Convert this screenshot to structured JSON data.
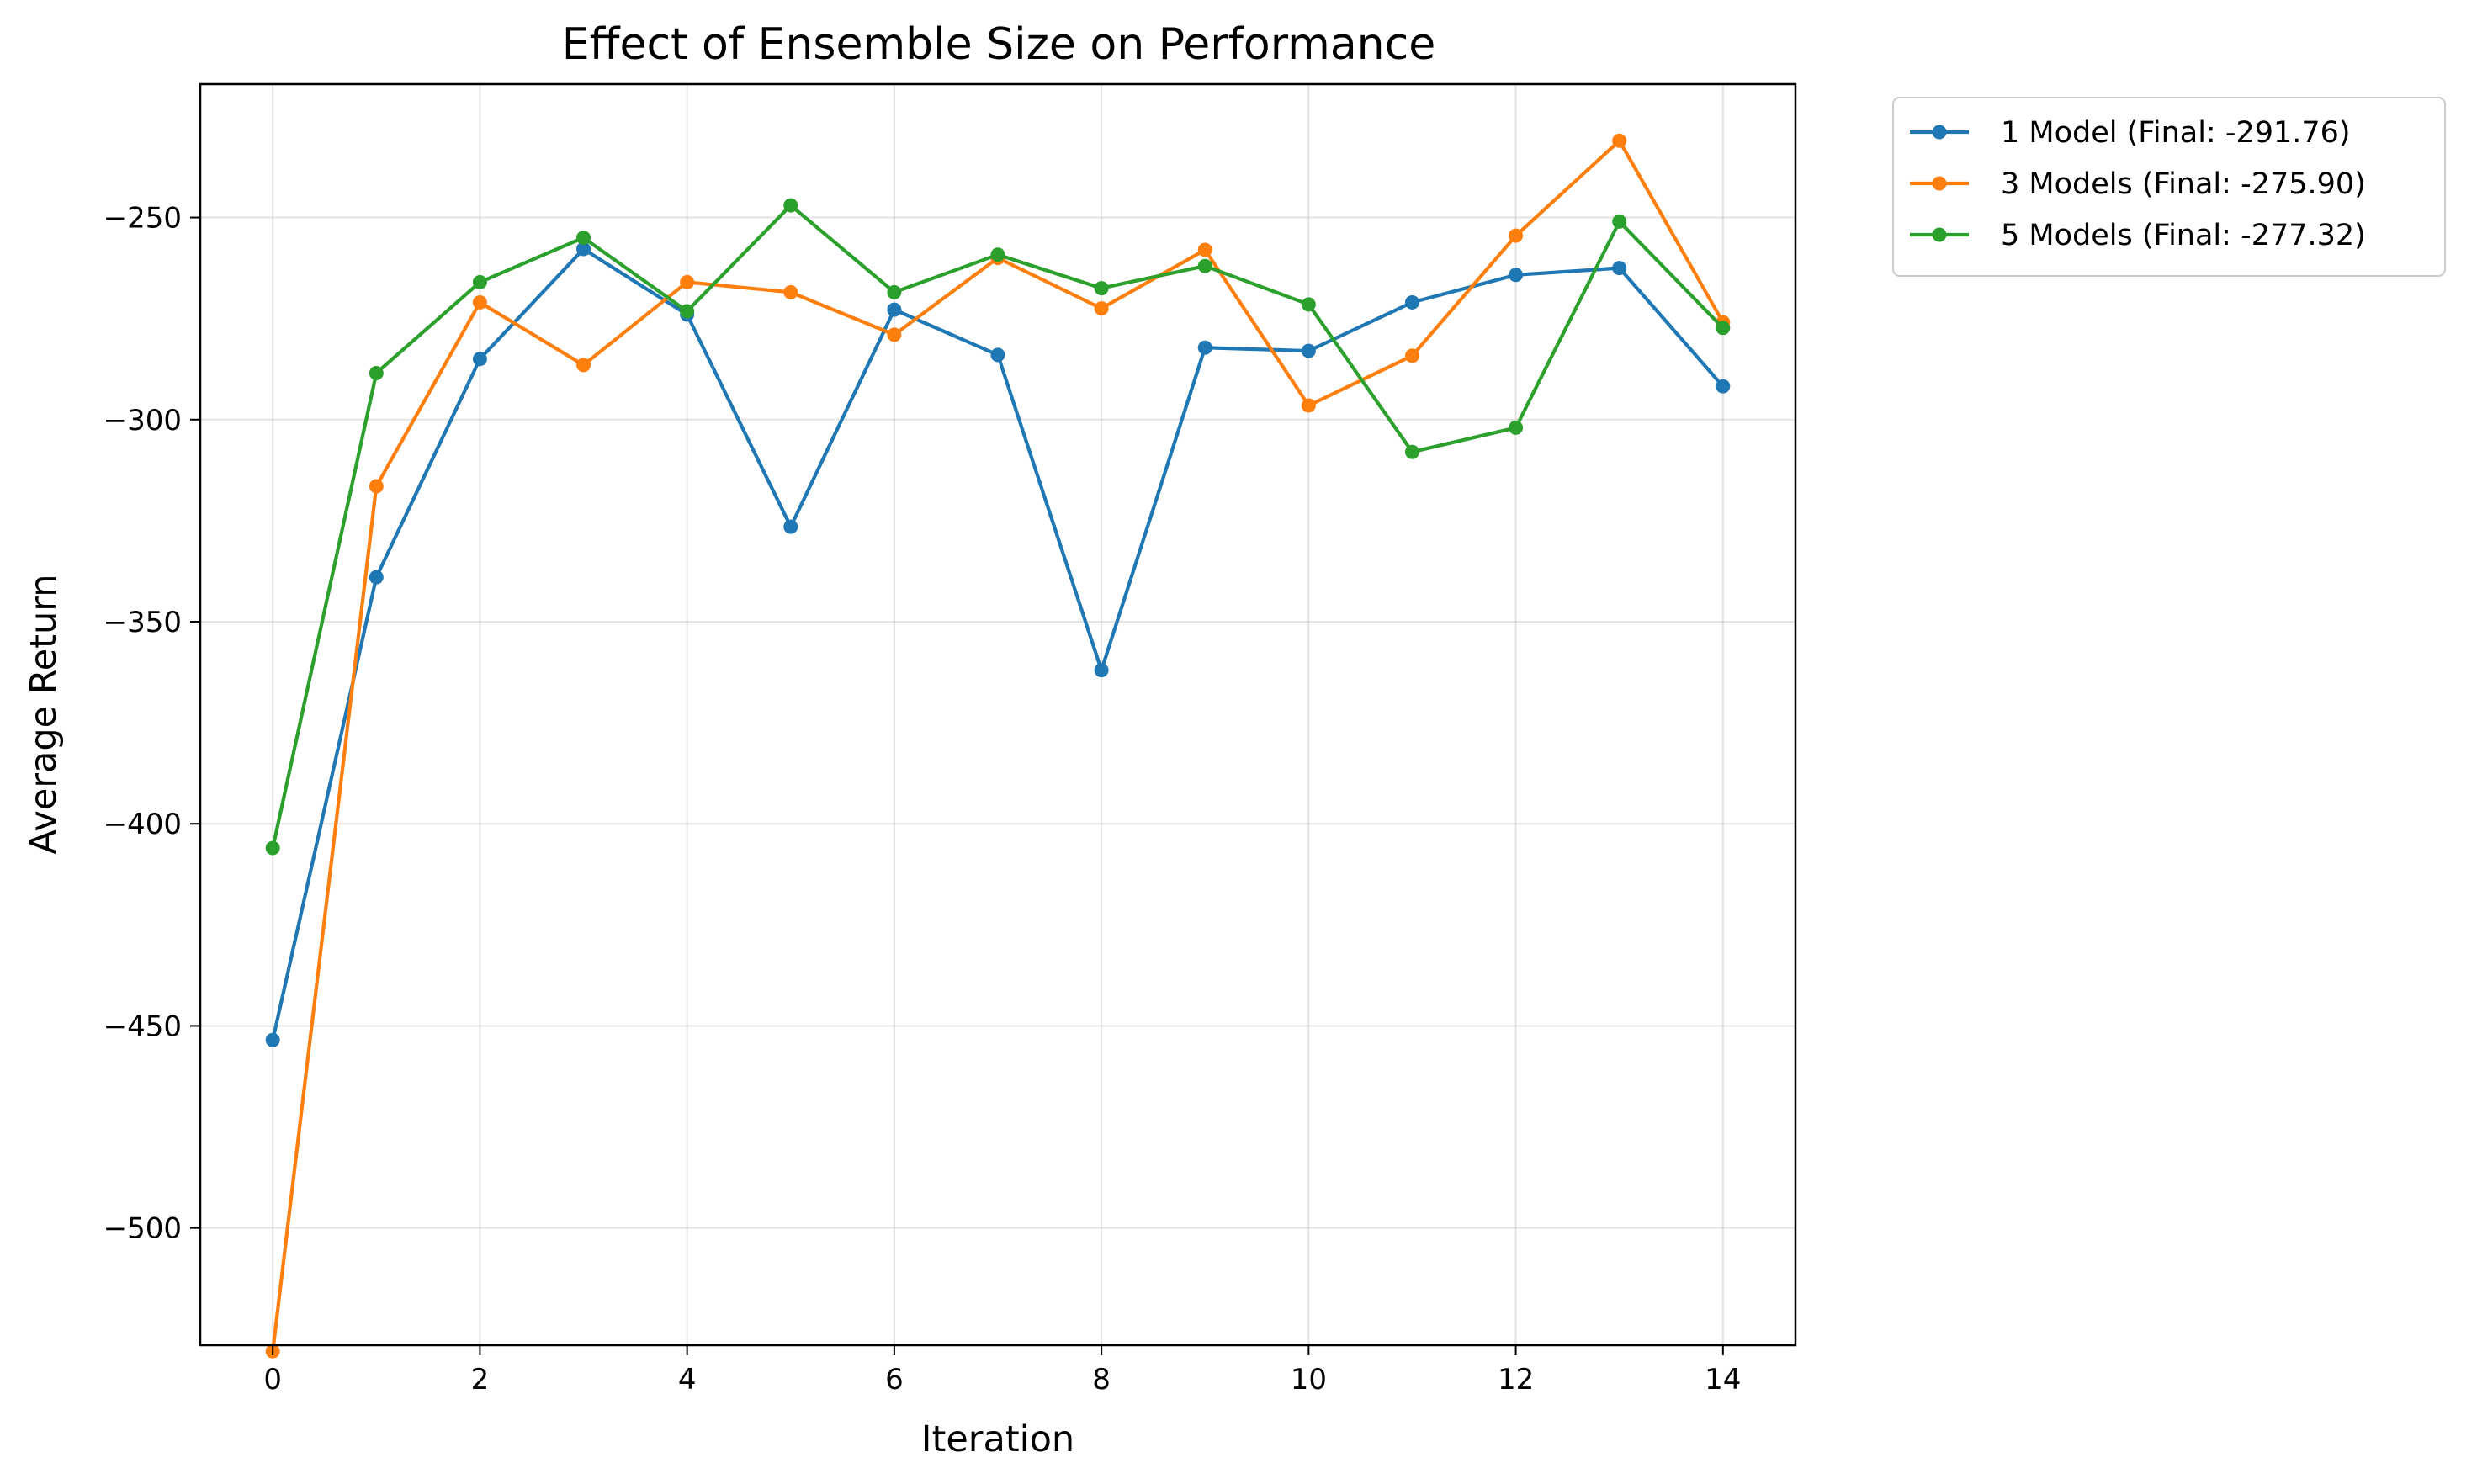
{
  "chart_data": {
    "type": "line",
    "title": "Effect of Ensemble Size on Performance",
    "xlabel": "Iteration",
    "ylabel": "Average Return",
    "x": [
      0,
      1,
      2,
      3,
      4,
      5,
      6,
      7,
      8,
      9,
      10,
      11,
      12,
      13,
      14
    ],
    "xlim": [
      -0.7,
      14.7
    ],
    "ylim": [
      -529,
      -217
    ],
    "xticks": [
      0,
      2,
      4,
      6,
      8,
      10,
      12,
      14
    ],
    "xtick_labels": [
      "0",
      "2",
      "4",
      "6",
      "8",
      "10",
      "12",
      "14"
    ],
    "yticks": [
      -250,
      -300,
      -350,
      -400,
      -450,
      -500
    ],
    "ytick_labels": [
      "−250",
      "−300",
      "−350",
      "−400",
      "−450",
      "−500"
    ],
    "grid": true,
    "legend_position": "outside-top-right",
    "series": [
      {
        "name": "1 Model (Final: -291.76)",
        "color": "#1f77b4",
        "values": [
          -453.5,
          -339.0,
          -285.0,
          -257.8,
          -274.0,
          -326.5,
          -272.8,
          -284.0,
          -362.0,
          -282.2,
          -283.0,
          -271.0,
          -264.2,
          -262.5,
          -291.76
        ]
      },
      {
        "name": "3 Models (Final: -275.90)",
        "color": "#ff7f0e",
        "values": [
          -530.5,
          -316.5,
          -271.0,
          -286.5,
          -266.0,
          -268.5,
          -279.0,
          -260.0,
          -272.5,
          -258.0,
          -296.5,
          -284.2,
          -254.5,
          -231.0,
          -275.9
        ]
      },
      {
        "name": "5 Models (Final: -277.32)",
        "color": "#2ca02c",
        "values": [
          -406.0,
          -288.5,
          -266.0,
          -255.0,
          -273.2,
          -247.0,
          -268.5,
          -259.2,
          -267.5,
          -262.0,
          -271.5,
          -308.0,
          -302.0,
          -251.0,
          -277.32
        ]
      }
    ]
  }
}
